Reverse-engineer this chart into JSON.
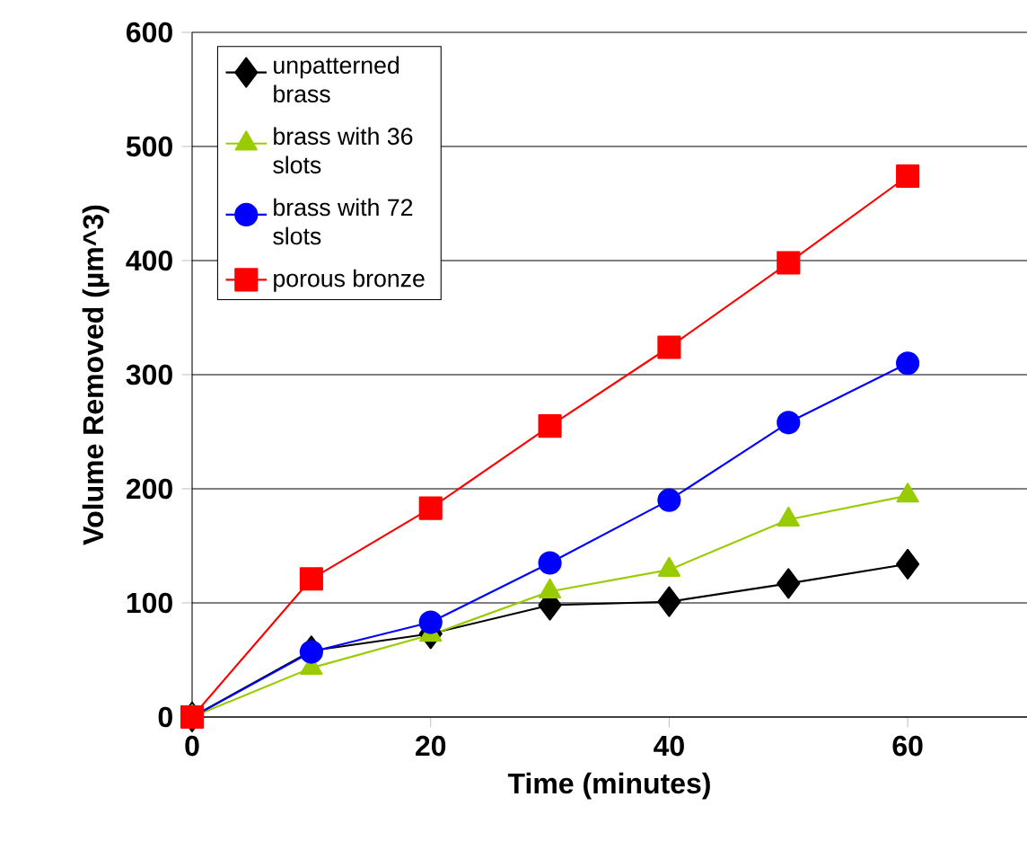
{
  "chart_data": {
    "type": "line",
    "xlabel": "Time (minutes)",
    "ylabel": "Volume Removed (µm^3)",
    "xlim": [
      0,
      70
    ],
    "xticks": [
      0,
      20,
      40,
      60
    ],
    "ylim": [
      0,
      600
    ],
    "yticks": [
      0,
      100,
      200,
      300,
      400,
      500,
      600
    ],
    "grid": "y",
    "legend": "top left",
    "line_style": "solid",
    "series": [
      {
        "name": "unpatterned brass",
        "color": "#000000",
        "marker": "diamond",
        "x": [
          0,
          10,
          20,
          30,
          40,
          50,
          60
        ],
        "values": [
          0,
          58,
          73,
          98,
          101,
          117,
          134
        ]
      },
      {
        "name": "brass with 36 slots",
        "color": "#99cc00",
        "marker": "triangle",
        "x": [
          0,
          10,
          20,
          30,
          40,
          50,
          60
        ],
        "values": [
          0,
          43,
          72,
          110,
          129,
          173,
          194
        ]
      },
      {
        "name": "brass with 72 slots",
        "color": "#0000ff",
        "marker": "circle",
        "x": [
          0,
          10,
          20,
          30,
          40,
          50,
          60
        ],
        "values": [
          0,
          57,
          83,
          135,
          190,
          258,
          310
        ]
      },
      {
        "name": "porous bronze",
        "color": "#ff0000",
        "marker": "square",
        "x": [
          0,
          10,
          20,
          30,
          40,
          50,
          60
        ],
        "values": [
          0,
          121,
          183,
          255,
          324,
          398,
          474
        ]
      }
    ]
  }
}
